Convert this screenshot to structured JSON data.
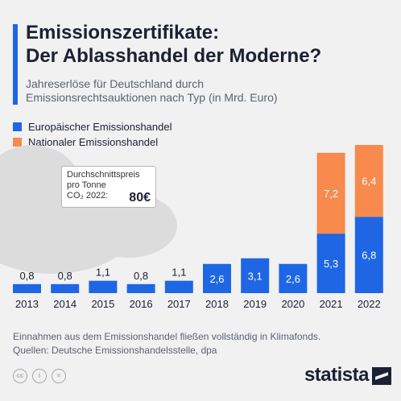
{
  "title_lines": [
    "Emissionszertifikate:",
    "Der Ablasshandel der Moderne?"
  ],
  "subtitle_lines": [
    "Jahreserlöse für Deutschland durch",
    "Emissionsrechtsauktionen nach Typ (in Mrd. Euro)"
  ],
  "callout": {
    "label_lines": [
      "Durchschnittspreis",
      "pro Tonne",
      "CO₂ 2022:"
    ],
    "value": "80€"
  },
  "footer": {
    "note": "Einnahmen aus dem Emissionshandel fließen vollständig in Klimafonds.",
    "source": "Quellen: Deutsche Emissionshandelsstelle, dpa"
  },
  "brand": "statista",
  "colors": {
    "eu": "#1f66e5",
    "national": "#f78a4c",
    "accent": "#1f66e5",
    "background": "#f1f1f1",
    "cloud": "#dcdcdc"
  },
  "icons": [
    "cc-icon",
    "attribution-icon",
    "no-derivatives-icon",
    "statista-logo-icon"
  ],
  "chart_data": {
    "type": "bar",
    "stacked": true,
    "categories": [
      "2013",
      "2014",
      "2015",
      "2016",
      "2017",
      "2018",
      "2019",
      "2020",
      "2021",
      "2022"
    ],
    "series": [
      {
        "name": "Europäischer Emissionshandel",
        "color": "#1f66e5",
        "values": [
          0.8,
          0.8,
          1.1,
          0.8,
          1.1,
          2.6,
          3.1,
          2.6,
          5.3,
          6.8
        ],
        "labels": [
          "0,8",
          "0,8",
          "1,1",
          "0,8",
          "1,1",
          "2,6",
          "3,1",
          "2,6",
          "5,3",
          "6,8"
        ]
      },
      {
        "name": "Nationaler Emissionshandel",
        "color": "#f78a4c",
        "values": [
          0,
          0,
          0,
          0,
          0,
          0,
          0,
          0,
          7.2,
          6.4
        ],
        "labels": [
          "",
          "",
          "",
          "",
          "",
          "",
          "",
          "",
          "7,2",
          "6,4"
        ]
      }
    ],
    "ylim": [
      0,
      13.2
    ],
    "legend": "top-left"
  }
}
